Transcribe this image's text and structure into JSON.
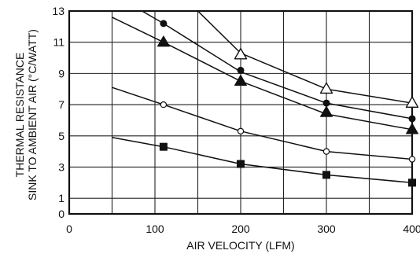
{
  "chart_data": {
    "type": "line",
    "title": "",
    "xlabel": "AIR VELOCITY (LFM)",
    "ylabel_lines": [
      "THERMAL RESISTANCE",
      "SINK TO AMBIENT AIR (°C/WATT)"
    ],
    "xlim": [
      0,
      400
    ],
    "ylim": [
      0,
      13
    ],
    "x_ticks": [
      0,
      100,
      200,
      300,
      400
    ],
    "y_ticks": [
      0,
      1,
      3,
      5,
      7,
      9,
      11,
      13
    ],
    "x_grid": [
      50,
      100,
      150,
      200,
      250,
      300,
      350,
      400
    ],
    "grid": true,
    "legend": "none",
    "series": [
      {
        "marker": "open-triangle",
        "line": [
          [
            150,
            13.0
          ],
          [
            200,
            10.3
          ],
          [
            300,
            8.0
          ],
          [
            400,
            7.1
          ]
        ],
        "markers": [
          [
            200,
            10.2
          ],
          [
            300,
            8.0
          ],
          [
            400,
            7.1
          ]
        ]
      },
      {
        "marker": "filled-circle",
        "line": [
          [
            85,
            13.0
          ],
          [
            110,
            12.2
          ],
          [
            200,
            9.1
          ],
          [
            300,
            7.1
          ],
          [
            400,
            6.1
          ]
        ],
        "markers": [
          [
            110,
            12.2
          ],
          [
            200,
            9.2
          ],
          [
            300,
            7.1
          ],
          [
            400,
            6.1
          ]
        ]
      },
      {
        "marker": "filled-triangle",
        "line": [
          [
            50,
            12.6
          ],
          [
            110,
            11.0
          ],
          [
            200,
            8.5
          ],
          [
            300,
            6.4
          ],
          [
            400,
            5.4
          ]
        ],
        "markers": [
          [
            110,
            11.0
          ],
          [
            200,
            8.5
          ],
          [
            300,
            6.5
          ],
          [
            400,
            5.4
          ]
        ]
      },
      {
        "marker": "open-circle",
        "line": [
          [
            50,
            8.1
          ],
          [
            110,
            7.0
          ],
          [
            200,
            5.3
          ],
          [
            300,
            4.0
          ],
          [
            400,
            3.5
          ]
        ],
        "markers": [
          [
            110,
            7.0
          ],
          [
            200,
            5.3
          ],
          [
            300,
            4.0
          ],
          [
            400,
            3.5
          ]
        ]
      },
      {
        "marker": "filled-square",
        "line": [
          [
            50,
            4.9
          ],
          [
            110,
            4.3
          ],
          [
            200,
            3.2
          ],
          [
            300,
            2.5
          ],
          [
            400,
            2.0
          ]
        ],
        "markers": [
          [
            110,
            4.3
          ],
          [
            200,
            3.2
          ],
          [
            300,
            2.5
          ],
          [
            400,
            2.0
          ]
        ]
      }
    ]
  }
}
